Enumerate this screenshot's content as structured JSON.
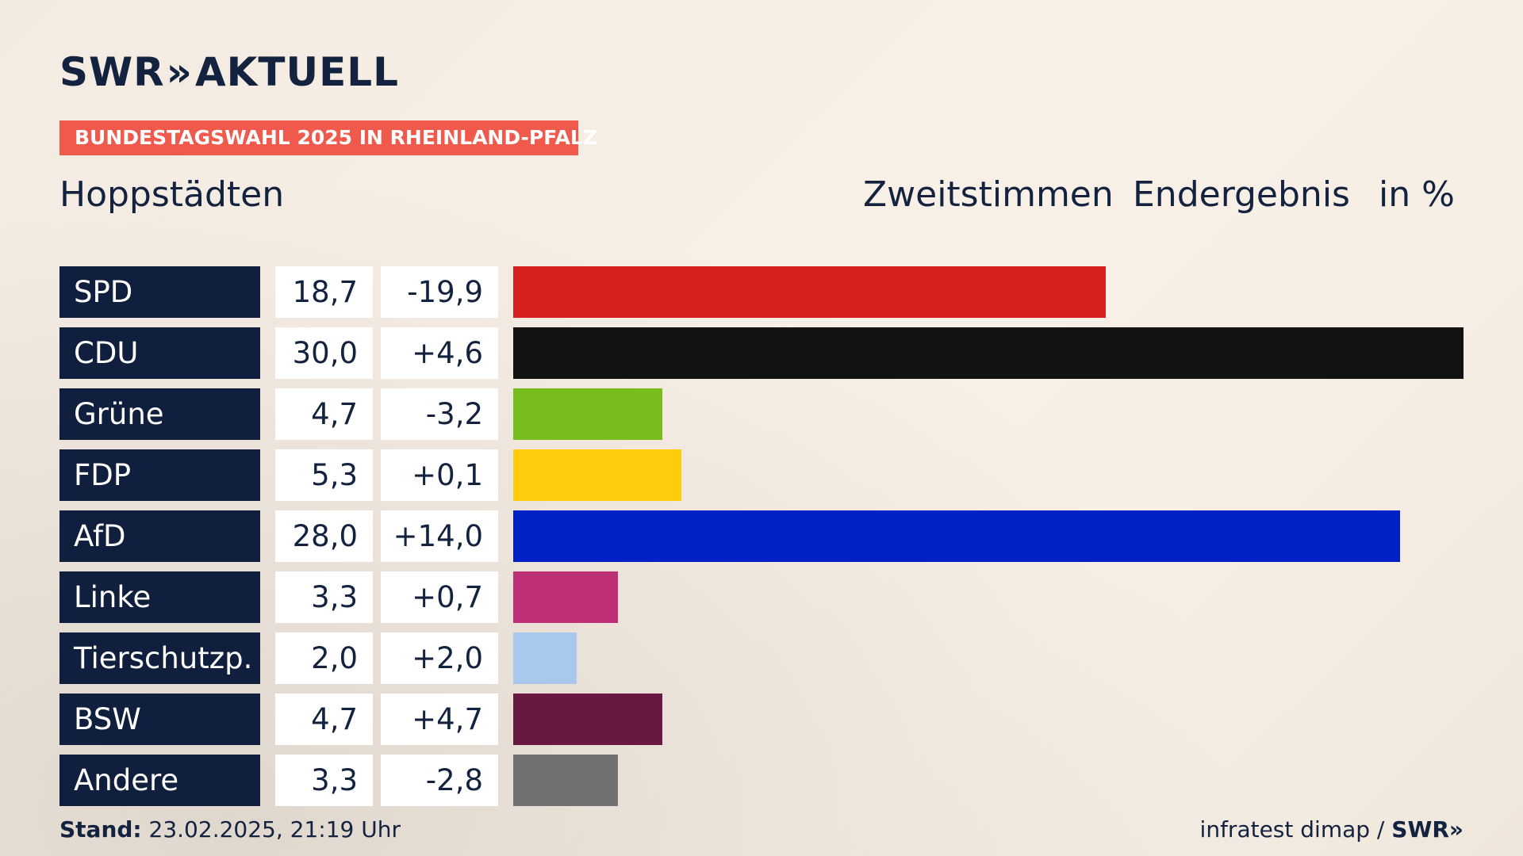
{
  "brand": {
    "logo_text": "SWR",
    "logo_chevrons": "»",
    "logo_suffix": "AKTUELL"
  },
  "event_badge": "BUNDESTAGSWAHL 2025 IN RHEINLAND-PFALZ",
  "header": {
    "place": "Hoppstädten",
    "vote_type": "Zweitstimmen",
    "status": "Endergebnis",
    "unit": "in %"
  },
  "chart_data": {
    "type": "bar",
    "orientation": "horizontal",
    "categories": [
      "SPD",
      "CDU",
      "Grüne",
      "FDP",
      "AfD",
      "Linke",
      "Tierschutzp.",
      "BSW",
      "Andere"
    ],
    "values": [
      18.7,
      30.0,
      4.7,
      5.3,
      28.0,
      3.3,
      2.0,
      4.7,
      3.3
    ],
    "value_labels": [
      "18,7",
      "30,0",
      "4,7",
      "5,3",
      "28,0",
      "3,3",
      "2,0",
      "4,7",
      "3,3"
    ],
    "changes": [
      -19.9,
      4.6,
      -3.2,
      0.1,
      14.0,
      0.7,
      2.0,
      4.7,
      -2.8
    ],
    "change_labels": [
      "-19,9",
      "+4,6",
      "-3,2",
      "+0,1",
      "+14,0",
      "+0,7",
      "+2,0",
      "+4,7",
      "-2,8"
    ],
    "colors": [
      "#d71f1f",
      "#121212",
      "#76bd1d",
      "#fecc0a",
      "#0021c6",
      "#bd3075",
      "#a9c8ee",
      "#691941",
      "#707070"
    ],
    "xlim": [
      0,
      30
    ],
    "grid": false,
    "legend": "none"
  },
  "footer": {
    "stand_label": "Stand:",
    "stand_value": "23.02.2025, 21:19 Uhr",
    "source": "infratest dimap /",
    "source_brand": "SWR",
    "source_chevrons": "»"
  }
}
